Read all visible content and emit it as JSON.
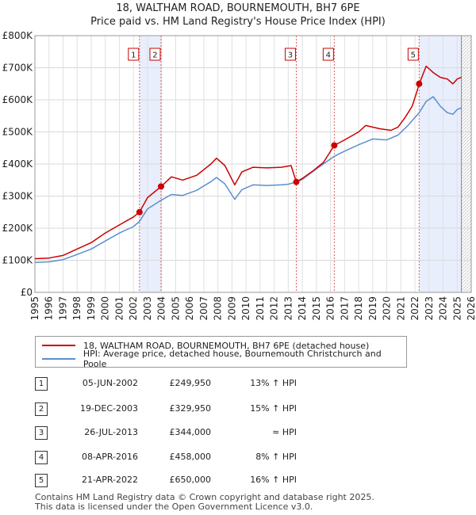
{
  "chart_data": {
    "type": "line",
    "title": "18, WALTHAM ROAD, BOURNEMOUTH, BH7 6PE",
    "subtitle": "Price paid vs. HM Land Registry's House Price Index (HPI)",
    "xlim": [
      1995,
      2026
    ],
    "ylim": [
      0,
      800000
    ],
    "x_ticks": [
      "1995",
      "1996",
      "1997",
      "1998",
      "1999",
      "2000",
      "2001",
      "2002",
      "2003",
      "2004",
      "2005",
      "2006",
      "2007",
      "2008",
      "2009",
      "2010",
      "2011",
      "2012",
      "2013",
      "2014",
      "2015",
      "2016",
      "2017",
      "2018",
      "2019",
      "2020",
      "2021",
      "2022",
      "2023",
      "2024",
      "2025",
      "2026"
    ],
    "y_ticks": [
      {
        "value": 0,
        "label": "£0"
      },
      {
        "value": 100000,
        "label": "£100K"
      },
      {
        "value": 200000,
        "label": "£200K"
      },
      {
        "value": 300000,
        "label": "£300K"
      },
      {
        "value": 400000,
        "label": "£400K"
      },
      {
        "value": 500000,
        "label": "£500K"
      },
      {
        "value": 600000,
        "label": "£600K"
      },
      {
        "value": 700000,
        "label": "£700K"
      },
      {
        "value": 800000,
        "label": "£800K"
      }
    ],
    "shaded_ranges": [
      [
        2002.43,
        2003.96
      ],
      [
        2022.3,
        2025.3
      ]
    ],
    "data_end": 2025.3,
    "series": [
      {
        "name": "18, WALTHAM ROAD, BOURNEMOUTH, BH7 6PE (detached house)",
        "color": "#cc0000",
        "points": [
          [
            1995,
            105000
          ],
          [
            1996,
            107000
          ],
          [
            1997,
            115000
          ],
          [
            1998,
            135000
          ],
          [
            1999,
            155000
          ],
          [
            2000,
            185000
          ],
          [
            2001,
            210000
          ],
          [
            2002,
            235000
          ],
          [
            2002.43,
            249950
          ],
          [
            2003,
            295000
          ],
          [
            2003.96,
            329950
          ],
          [
            2004.7,
            360000
          ],
          [
            2005.5,
            350000
          ],
          [
            2006.5,
            365000
          ],
          [
            2007.5,
            400000
          ],
          [
            2007.9,
            418000
          ],
          [
            2008.5,
            395000
          ],
          [
            2009.2,
            335000
          ],
          [
            2009.7,
            375000
          ],
          [
            2010.5,
            390000
          ],
          [
            2011.5,
            388000
          ],
          [
            2012.5,
            390000
          ],
          [
            2013.2,
            395000
          ],
          [
            2013.57,
            344000
          ],
          [
            2014,
            355000
          ],
          [
            2014.8,
            380000
          ],
          [
            2015.5,
            405000
          ],
          [
            2016.27,
            458000
          ],
          [
            2017,
            475000
          ],
          [
            2018,
            500000
          ],
          [
            2018.5,
            520000
          ],
          [
            2019.5,
            510000
          ],
          [
            2020.3,
            505000
          ],
          [
            2020.8,
            515000
          ],
          [
            2021.3,
            545000
          ],
          [
            2021.8,
            580000
          ],
          [
            2022.1,
            620000
          ],
          [
            2022.3,
            650000
          ],
          [
            2022.8,
            705000
          ],
          [
            2023.3,
            685000
          ],
          [
            2023.8,
            670000
          ],
          [
            2024.3,
            665000
          ],
          [
            2024.7,
            650000
          ],
          [
            2025,
            665000
          ],
          [
            2025.3,
            670000
          ]
        ]
      },
      {
        "name": "HPI: Average price, detached house, Bournemouth Christchurch and Poole",
        "color": "#5b8fcf",
        "points": [
          [
            1995,
            93000
          ],
          [
            1996,
            95000
          ],
          [
            1997,
            102000
          ],
          [
            1998,
            118000
          ],
          [
            1999,
            135000
          ],
          [
            2000,
            160000
          ],
          [
            2001,
            185000
          ],
          [
            2002,
            205000
          ],
          [
            2002.43,
            221000
          ],
          [
            2003,
            260000
          ],
          [
            2003.96,
            287000
          ],
          [
            2004.7,
            305000
          ],
          [
            2005.5,
            302000
          ],
          [
            2006.5,
            318000
          ],
          [
            2007.5,
            345000
          ],
          [
            2007.9,
            358000
          ],
          [
            2008.5,
            338000
          ],
          [
            2009.2,
            290000
          ],
          [
            2009.7,
            320000
          ],
          [
            2010.5,
            335000
          ],
          [
            2011.5,
            333000
          ],
          [
            2012.5,
            335000
          ],
          [
            2013,
            337000
          ],
          [
            2013.57,
            344000
          ],
          [
            2014,
            352000
          ],
          [
            2015,
            385000
          ],
          [
            2016.27,
            424000
          ],
          [
            2017,
            440000
          ],
          [
            2018,
            460000
          ],
          [
            2019,
            478000
          ],
          [
            2020,
            475000
          ],
          [
            2020.8,
            490000
          ],
          [
            2021.5,
            520000
          ],
          [
            2022.3,
            560000
          ],
          [
            2022.8,
            595000
          ],
          [
            2023.3,
            610000
          ],
          [
            2023.8,
            580000
          ],
          [
            2024.3,
            560000
          ],
          [
            2024.7,
            555000
          ],
          [
            2025,
            570000
          ],
          [
            2025.3,
            575000
          ]
        ]
      }
    ],
    "sales": [
      {
        "id": "1",
        "x": 2002.43,
        "value": 249950
      },
      {
        "id": "2",
        "x": 2003.96,
        "value": 329950
      },
      {
        "id": "3",
        "x": 2013.57,
        "value": 344000
      },
      {
        "id": "4",
        "x": 2016.27,
        "value": 458000
      },
      {
        "id": "5",
        "x": 2022.3,
        "value": 650000
      }
    ]
  },
  "legend": {
    "property_label": "18, WALTHAM ROAD, BOURNEMOUTH, BH7 6PE (detached house)",
    "hpi_label": "HPI: Average price, detached house, Bournemouth Christchurch and Poole"
  },
  "transactions": [
    {
      "num": "1",
      "date": "05-JUN-2002",
      "price": "£249,950",
      "hpi": "13% ↑ HPI"
    },
    {
      "num": "2",
      "date": "19-DEC-2003",
      "price": "£329,950",
      "hpi": "15% ↑ HPI"
    },
    {
      "num": "3",
      "date": "26-JUL-2013",
      "price": "£344,000",
      "hpi": "≈ HPI"
    },
    {
      "num": "4",
      "date": "08-APR-2016",
      "price": "£458,000",
      "hpi": "8% ↑ HPI"
    },
    {
      "num": "5",
      "date": "21-APR-2022",
      "price": "£650,000",
      "hpi": "16% ↑ HPI"
    }
  ],
  "footer": {
    "line1": "Contains HM Land Registry data © Crown copyright and database right 2025.",
    "line2": "This data is licensed under the Open Government Licence v3.0."
  },
  "colors": {
    "property": "#cc0000",
    "hpi": "#5b8fcf",
    "shade": "#e8eefb",
    "vline": "#e06060"
  }
}
